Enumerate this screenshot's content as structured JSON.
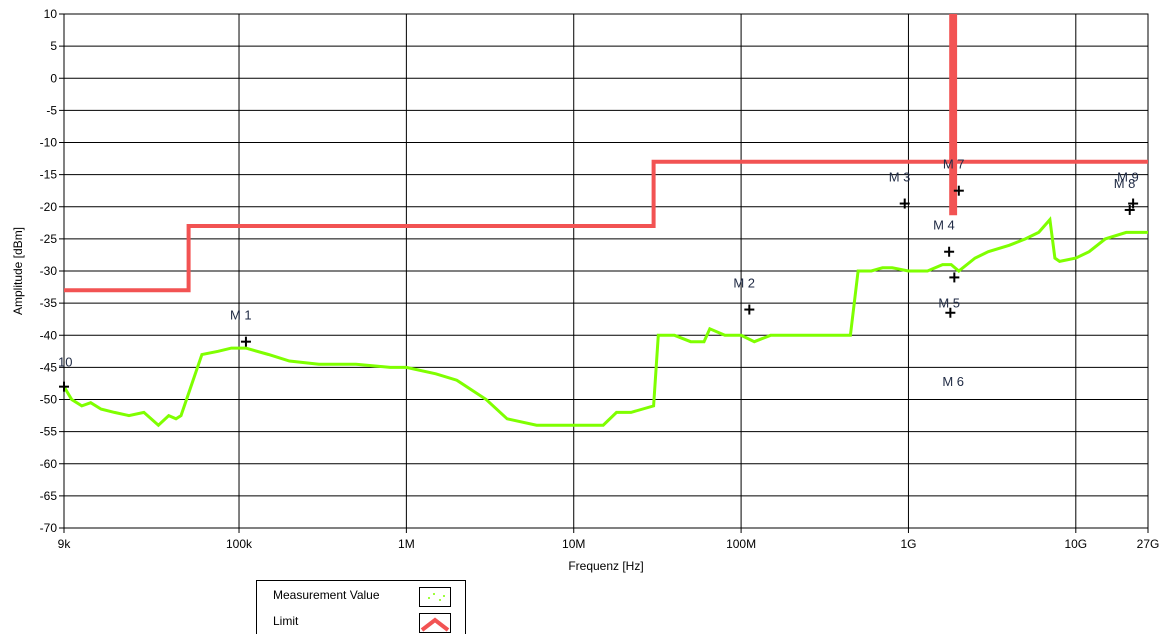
{
  "chart_data": {
    "type": "line",
    "title": "",
    "xlabel": "Frequenz [Hz]",
    "ylabel": "Amplitude [dBm]",
    "xscale": "log",
    "xlim": [
      9000,
      27000000000
    ],
    "ylim": [
      -70,
      10
    ],
    "grid": true,
    "legend_position": "bottom-left",
    "x_ticks": [
      {
        "value": 9000,
        "label": "9k"
      },
      {
        "value": 100000,
        "label": "100k"
      },
      {
        "value": 1000000,
        "label": "1M"
      },
      {
        "value": 10000000,
        "label": "10M"
      },
      {
        "value": 100000000,
        "label": "100M"
      },
      {
        "value": 1000000000,
        "label": "1G"
      },
      {
        "value": 10000000000,
        "label": "10G"
      },
      {
        "value": 27000000000,
        "label": "27G"
      }
    ],
    "y_ticks": [
      10,
      5,
      0,
      -5,
      -10,
      -15,
      -20,
      -25,
      -30,
      -35,
      -40,
      -45,
      -50,
      -55,
      -60,
      -65,
      -70
    ],
    "series": [
      {
        "name": "Measurement Value",
        "color": "#7fff00",
        "points": [
          [
            9000,
            -48
          ],
          [
            10000,
            -50
          ],
          [
            11500,
            -51
          ],
          [
            13000,
            -50.5
          ],
          [
            15000,
            -51.5
          ],
          [
            18000,
            -52
          ],
          [
            22000,
            -52.5
          ],
          [
            27000,
            -52
          ],
          [
            33000,
            -54
          ],
          [
            38000,
            -52.5
          ],
          [
            42000,
            -53
          ],
          [
            45000,
            -52.5
          ],
          [
            60000,
            -43
          ],
          [
            75000,
            -42.5
          ],
          [
            90000,
            -42
          ],
          [
            110000,
            -42
          ],
          [
            150000,
            -43
          ],
          [
            200000,
            -44
          ],
          [
            300000,
            -44.5
          ],
          [
            500000,
            -44.5
          ],
          [
            800000,
            -45
          ],
          [
            1000000,
            -45
          ],
          [
            1500000,
            -46
          ],
          [
            2000000,
            -47
          ],
          [
            3000000,
            -50
          ],
          [
            4000000,
            -53
          ],
          [
            6000000,
            -54
          ],
          [
            10000000,
            -54
          ],
          [
            15000000,
            -54
          ],
          [
            18000000,
            -52
          ],
          [
            22000000,
            -52
          ],
          [
            30000000,
            -51
          ],
          [
            32000000,
            -40
          ],
          [
            40000000,
            -40
          ],
          [
            50000000,
            -41
          ],
          [
            60000000,
            -41
          ],
          [
            65000000,
            -39
          ],
          [
            80000000,
            -40
          ],
          [
            100000000,
            -40
          ],
          [
            120000000,
            -41
          ],
          [
            150000000,
            -40
          ],
          [
            200000000,
            -40
          ],
          [
            300000000,
            -40
          ],
          [
            450000000,
            -40
          ],
          [
            500000000,
            -30
          ],
          [
            600000000,
            -30
          ],
          [
            700000000,
            -29.5
          ],
          [
            800000000,
            -29.5
          ],
          [
            1000000000,
            -30
          ],
          [
            1300000000,
            -30
          ],
          [
            1600000000,
            -29
          ],
          [
            1800000000,
            -29
          ],
          [
            2000000000,
            -30
          ],
          [
            2500000000,
            -28
          ],
          [
            3000000000,
            -27
          ],
          [
            4000000000,
            -26
          ],
          [
            5000000000,
            -25
          ],
          [
            6000000000,
            -24
          ],
          [
            7000000000,
            -22
          ],
          [
            7500000000,
            -28
          ],
          [
            8000000000,
            -28.5
          ],
          [
            10000000000,
            -28
          ],
          [
            12000000000,
            -27
          ],
          [
            15000000000,
            -25
          ],
          [
            20000000000,
            -24
          ],
          [
            27000000000,
            -24
          ]
        ]
      },
      {
        "name": "Limit",
        "color": "#f25353",
        "points": [
          [
            9000,
            -33
          ],
          [
            50000,
            -33
          ],
          [
            50000,
            -23
          ],
          [
            30000000,
            -23
          ],
          [
            30000000,
            -13
          ],
          [
            1800000000,
            -13
          ],
          [
            1800000000,
            10
          ],
          [
            1800000000,
            -21
          ],
          [
            1900000000,
            -21
          ],
          [
            1900000000,
            10
          ],
          [
            1900000000,
            -13
          ],
          [
            27000000000,
            -13
          ]
        ]
      }
    ],
    "markers": [
      {
        "label": "10",
        "x": 9000,
        "y": -48,
        "label_pos": "above"
      },
      {
        "label": "M 1",
        "x": 110000,
        "y": -41,
        "label_pos": "above-left"
      },
      {
        "label": "M 2",
        "x": 112000000,
        "y": -36,
        "label_pos": "above-left"
      },
      {
        "label": "M 3",
        "x": 950000000,
        "y": -19.5,
        "label_pos": "above-left"
      },
      {
        "label": "M 4",
        "x": 1750000000,
        "y": -27,
        "label_pos": "above-left"
      },
      {
        "label": "M 5",
        "x": 1880000000,
        "y": -31,
        "label_pos": "below-left"
      },
      {
        "label": "M 6",
        "x": 1780000000,
        "y": -36.5,
        "label_pos": "above-wide"
      },
      {
        "label": "M 7",
        "x": 2000000000,
        "y": -17.5,
        "label_pos": "above-left"
      },
      {
        "label": "M 8",
        "x": 21000000000,
        "y": -20.5,
        "label_pos": "above-left"
      },
      {
        "label": "M 9",
        "x": 22000000000,
        "y": -19.5,
        "label_pos": "above-left"
      }
    ]
  },
  "legend": {
    "items": [
      {
        "label": "Measurement Value"
      },
      {
        "label": "Limit"
      }
    ]
  }
}
